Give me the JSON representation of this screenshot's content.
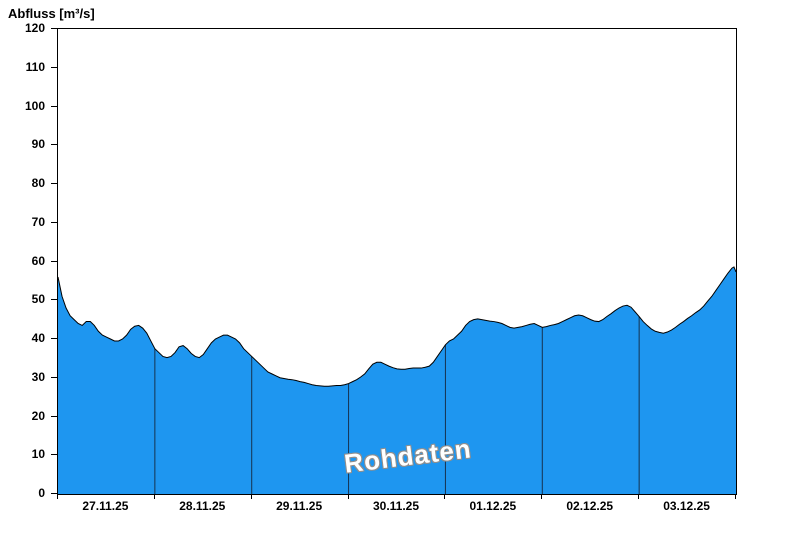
{
  "chart_data": {
    "type": "area",
    "title": "Abfluss [m³/s]",
    "watermark": "Rohdaten",
    "xlabel": "",
    "ylabel": "Abfluss [m³/s]",
    "ylim": [
      0,
      120
    ],
    "y_ticks": [
      0,
      10,
      20,
      30,
      40,
      50,
      60,
      70,
      80,
      90,
      100,
      110,
      120
    ],
    "x_range_hours": [
      0,
      168
    ],
    "x_tick_labels": [
      "27.11.25",
      "28.11.25",
      "29.11.25",
      "30.11.25",
      "01.12.25",
      "02.12.25",
      "03.12.25"
    ],
    "x_label_positions_hours": [
      12,
      36,
      60,
      84,
      108,
      132,
      156
    ],
    "day_boundaries_hours": [
      24,
      48,
      72,
      96,
      120,
      144
    ],
    "grid": false,
    "legend": false,
    "fill_color": "#1E96F0",
    "line_color": "#000000",
    "boundary_line_color": "#16324f",
    "series": [
      {
        "name": "Rohdaten",
        "points": [
          [
            0,
            56
          ],
          [
            1,
            51
          ],
          [
            2,
            48
          ],
          [
            3,
            46
          ],
          [
            4,
            45
          ],
          [
            5,
            44
          ],
          [
            6,
            43.5
          ],
          [
            7,
            44.5
          ],
          [
            8,
            44.5
          ],
          [
            9,
            43.5
          ],
          [
            10,
            42
          ],
          [
            11,
            41
          ],
          [
            12,
            40.5
          ],
          [
            13,
            40
          ],
          [
            14,
            39.5
          ],
          [
            15,
            39.5
          ],
          [
            16,
            40
          ],
          [
            17,
            41
          ],
          [
            18,
            42.5
          ],
          [
            19,
            43.3
          ],
          [
            20,
            43.5
          ],
          [
            21,
            42.8
          ],
          [
            22,
            41.5
          ],
          [
            23,
            39.5
          ],
          [
            24,
            37.5
          ],
          [
            25,
            36.5
          ],
          [
            26,
            35.5
          ],
          [
            27,
            35.2
          ],
          [
            28,
            35.5
          ],
          [
            29,
            36.5
          ],
          [
            30,
            38
          ],
          [
            31,
            38.3
          ],
          [
            32,
            37.5
          ],
          [
            33,
            36.3
          ],
          [
            34,
            35.5
          ],
          [
            35,
            35.2
          ],
          [
            36,
            36
          ],
          [
            37,
            37.5
          ],
          [
            38,
            39
          ],
          [
            39,
            40
          ],
          [
            40,
            40.5
          ],
          [
            41,
            41
          ],
          [
            42,
            41
          ],
          [
            43,
            40.5
          ],
          [
            44,
            40
          ],
          [
            45,
            39
          ],
          [
            46,
            37.5
          ],
          [
            47,
            36.5
          ],
          [
            48,
            35.5
          ],
          [
            49,
            34.5
          ],
          [
            50,
            33.5
          ],
          [
            51,
            32.5
          ],
          [
            52,
            31.5
          ],
          [
            53,
            31
          ],
          [
            54,
            30.5
          ],
          [
            55,
            30
          ],
          [
            56,
            29.8
          ],
          [
            57,
            29.6
          ],
          [
            58,
            29.5
          ],
          [
            59,
            29.3
          ],
          [
            60,
            29
          ],
          [
            61,
            28.8
          ],
          [
            62,
            28.5
          ],
          [
            63,
            28.2
          ],
          [
            64,
            28
          ],
          [
            65,
            27.9
          ],
          [
            66,
            27.8
          ],
          [
            67,
            27.8
          ],
          [
            68,
            27.9
          ],
          [
            69,
            28
          ],
          [
            70,
            28
          ],
          [
            71,
            28.2
          ],
          [
            72,
            28.5
          ],
          [
            73,
            29
          ],
          [
            74,
            29.5
          ],
          [
            75,
            30.2
          ],
          [
            76,
            31
          ],
          [
            77,
            32.3
          ],
          [
            78,
            33.5
          ],
          [
            79,
            34
          ],
          [
            80,
            34
          ],
          [
            81,
            33.5
          ],
          [
            82,
            33
          ],
          [
            83,
            32.6
          ],
          [
            84,
            32.3
          ],
          [
            85,
            32.2
          ],
          [
            86,
            32.2
          ],
          [
            87,
            32.4
          ],
          [
            88,
            32.5
          ],
          [
            89,
            32.5
          ],
          [
            90,
            32.5
          ],
          [
            91,
            32.7
          ],
          [
            92,
            33
          ],
          [
            93,
            34
          ],
          [
            94,
            35.5
          ],
          [
            95,
            37
          ],
          [
            96,
            38.5
          ],
          [
            97,
            39.5
          ],
          [
            98,
            40
          ],
          [
            99,
            41
          ],
          [
            100,
            42
          ],
          [
            101,
            43.5
          ],
          [
            102,
            44.5
          ],
          [
            103,
            45
          ],
          [
            104,
            45.2
          ],
          [
            105,
            45
          ],
          [
            106,
            44.8
          ],
          [
            107,
            44.6
          ],
          [
            108,
            44.5
          ],
          [
            109,
            44.3
          ],
          [
            110,
            44
          ],
          [
            111,
            43.5
          ],
          [
            112,
            43
          ],
          [
            113,
            42.8
          ],
          [
            114,
            43
          ],
          [
            115,
            43.2
          ],
          [
            116,
            43.5
          ],
          [
            117,
            43.8
          ],
          [
            118,
            44
          ],
          [
            119,
            43.5
          ],
          [
            120,
            43
          ],
          [
            121,
            43.2
          ],
          [
            122,
            43.5
          ],
          [
            123,
            43.7
          ],
          [
            124,
            44
          ],
          [
            125,
            44.5
          ],
          [
            126,
            45
          ],
          [
            127,
            45.5
          ],
          [
            128,
            46
          ],
          [
            129,
            46.2
          ],
          [
            130,
            46
          ],
          [
            131,
            45.5
          ],
          [
            132,
            45
          ],
          [
            133,
            44.6
          ],
          [
            134,
            44.5
          ],
          [
            135,
            45
          ],
          [
            136,
            45.8
          ],
          [
            137,
            46.5
          ],
          [
            138,
            47.3
          ],
          [
            139,
            48
          ],
          [
            140,
            48.5
          ],
          [
            141,
            48.7
          ],
          [
            142,
            48.2
          ],
          [
            143,
            47
          ],
          [
            144,
            45.8
          ],
          [
            145,
            44.5
          ],
          [
            146,
            43.5
          ],
          [
            147,
            42.6
          ],
          [
            148,
            42
          ],
          [
            149,
            41.7
          ],
          [
            150,
            41.5
          ],
          [
            151,
            41.8
          ],
          [
            152,
            42.3
          ],
          [
            153,
            43
          ],
          [
            154,
            43.8
          ],
          [
            155,
            44.5
          ],
          [
            156,
            45.3
          ],
          [
            157,
            46
          ],
          [
            158,
            46.8
          ],
          [
            159,
            47.5
          ],
          [
            160,
            48.5
          ],
          [
            161,
            49.8
          ],
          [
            162,
            51
          ],
          [
            163,
            52.5
          ],
          [
            164,
            54
          ],
          [
            165,
            55.5
          ],
          [
            166,
            57
          ],
          [
            167,
            58.3
          ],
          [
            167.5,
            58.6
          ],
          [
            168,
            57.3
          ]
        ]
      }
    ]
  }
}
